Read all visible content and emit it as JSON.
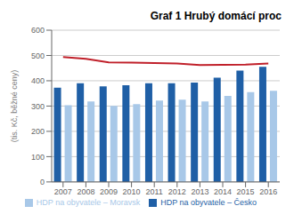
{
  "chart_data": {
    "type": "bar",
    "title": "Graf 1 Hrubý domácí proc",
    "ylabel": "(tis. Kč, běžné ceny)",
    "categories": [
      "2007",
      "2008",
      "2009",
      "2010",
      "2011",
      "2012",
      "2013",
      "2014",
      "2015",
      "2016"
    ],
    "series": [
      {
        "name": "HDP na obyvatele – Česko",
        "color": "#1f5fa6",
        "values": [
          373,
          390,
          378,
          382,
          390,
          390,
          393,
          412,
          440,
          455
        ]
      },
      {
        "name": "HDP na obyvatele – Moravsk",
        "color": "#a8c8e8",
        "values": [
          303,
          318,
          301,
          308,
          322,
          325,
          318,
          340,
          355,
          360
        ]
      },
      {
        "type": "line",
        "color": "#c0202a",
        "values": [
          494,
          487,
          473,
          472,
          470,
          468,
          462,
          463,
          464,
          468
        ]
      }
    ],
    "ylim": [
      0,
      600
    ],
    "yticks": [
      0,
      100,
      200,
      300,
      400,
      500,
      600
    ],
    "grid": true,
    "legend": "bottom"
  }
}
